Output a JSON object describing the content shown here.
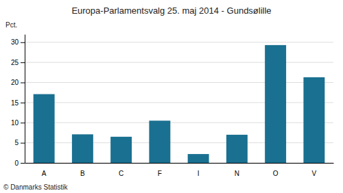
{
  "chart_data": {
    "type": "bar",
    "title": "Europa-Parlamentsvalg 25. maj 2014 - Gundsølille",
    "ylabel": "Pct.",
    "annotations": [
      "© Danmarks Statistik"
    ],
    "categories": [
      "A",
      "B",
      "C",
      "F",
      "I",
      "N",
      "O",
      "V"
    ],
    "values": [
      17.1,
      7.1,
      6.5,
      10.5,
      2.2,
      7.0,
      29.3,
      21.3
    ],
    "color": "#1a7090",
    "ylim": [
      0,
      32
    ],
    "yticks": [
      0,
      5,
      10,
      15,
      20,
      25,
      30
    ],
    "grid": true
  }
}
